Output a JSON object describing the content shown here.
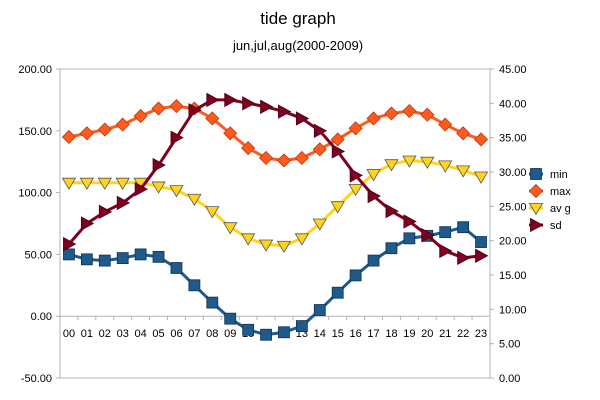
{
  "chart_data": {
    "type": "line",
    "title": "tide graph",
    "subtitle": "jun,jul,aug(2000-2009)",
    "categories": [
      "00",
      "01",
      "02",
      "03",
      "04",
      "05",
      "06",
      "07",
      "08",
      "09",
      "10",
      "11",
      "12",
      "13",
      "14",
      "15",
      "16",
      "17",
      "18",
      "19",
      "20",
      "21",
      "22",
      "23"
    ],
    "y_left": {
      "min": -50,
      "max": 200,
      "step": 50,
      "ticks": [
        "-50.00",
        "0.00",
        "50.00",
        "100.00",
        "150.00",
        "200.00"
      ]
    },
    "y_right": {
      "min": 0,
      "max": 45,
      "step": 5,
      "ticks": [
        "0.00",
        "5.00",
        "10.00",
        "15.00",
        "20.00",
        "25.00",
        "30.00",
        "35.00",
        "40.00",
        "45.00"
      ]
    },
    "grid": false,
    "legend_position": "right",
    "series": [
      {
        "name": "min",
        "axis": "left",
        "color": "#1f5a8a",
        "marker": "square",
        "values": [
          50,
          46,
          45,
          47,
          50,
          48,
          39,
          25,
          11,
          -2,
          -11,
          -15,
          -13,
          -8,
          5,
          19,
          33,
          45,
          55,
          63,
          65,
          68,
          72,
          60
        ]
      },
      {
        "name": "max",
        "axis": "left",
        "color": "#ff5a1f",
        "marker": "diamond",
        "values": [
          145,
          148,
          151,
          155,
          162,
          168,
          170,
          168,
          160,
          148,
          136,
          128,
          126,
          128,
          135,
          143,
          152,
          160,
          164,
          166,
          163,
          155,
          148,
          143
        ]
      },
      {
        "name": "avg",
        "axis": "left",
        "color": "#ffd320",
        "marker": "triangle-down",
        "values": [
          108,
          108,
          108,
          108,
          108,
          105,
          102,
          95,
          85,
          72,
          63,
          58,
          57,
          63,
          75,
          89,
          103,
          115,
          123,
          126,
          125,
          122,
          118,
          113
        ]
      },
      {
        "name": "sd",
        "axis": "right",
        "color": "#7e0021",
        "marker": "triangle-right",
        "values": [
          19.5,
          22.5,
          24.2,
          25.5,
          27.5,
          31.0,
          35.0,
          39.0,
          40.5,
          40.5,
          40.0,
          39.5,
          38.8,
          37.8,
          36.0,
          33.0,
          29.5,
          26.5,
          24.3,
          22.8,
          20.8,
          18.5,
          17.5,
          17.8
        ]
      }
    ],
    "legend_labels": [
      "min",
      "max",
      "av g",
      "sd"
    ]
  }
}
